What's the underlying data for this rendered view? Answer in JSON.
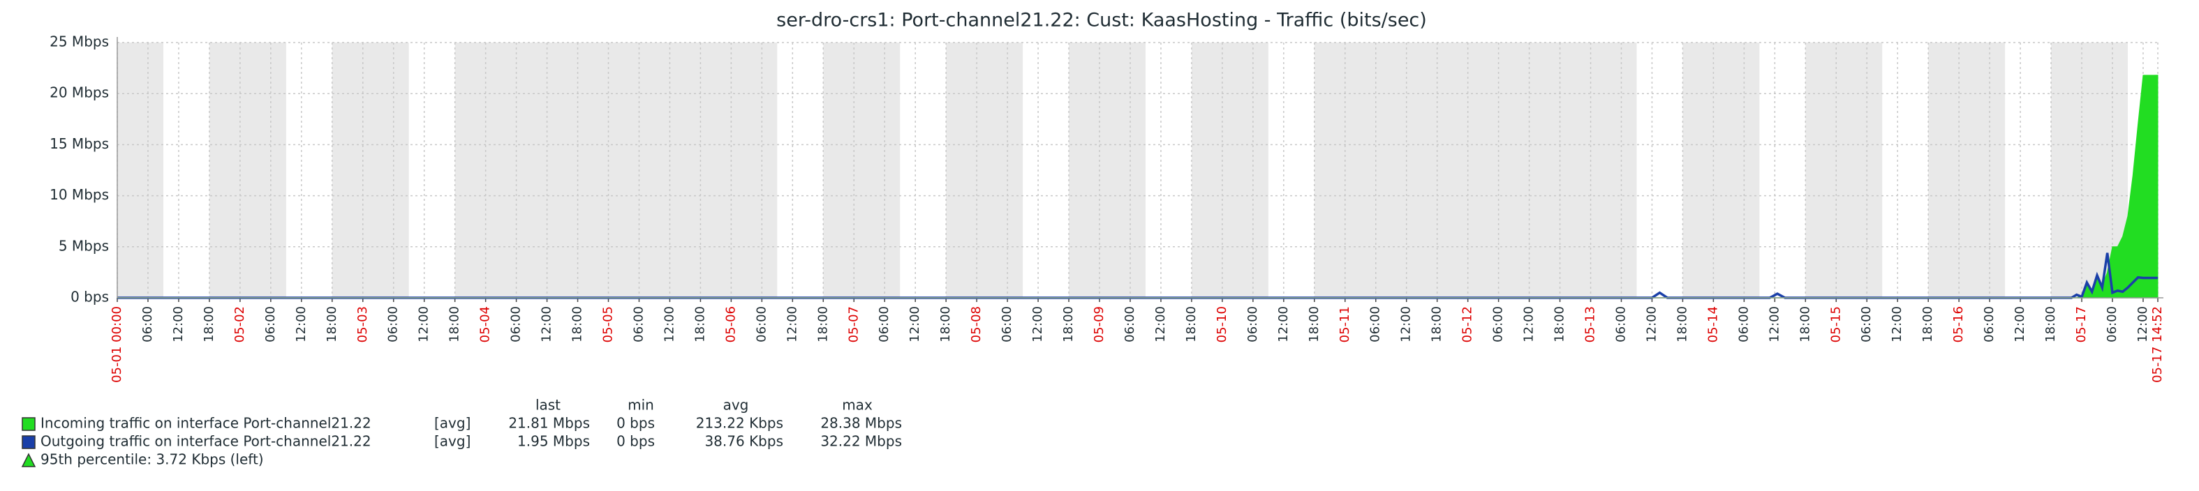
{
  "chart_data": {
    "type": "area",
    "title": "ser-dro-crs1: Port-channel21.22: Cust: KaasHosting - Traffic (bits/sec)",
    "x": [
      0,
      300,
      301.5,
      303,
      323,
      324.5,
      326,
      380,
      382,
      383,
      384,
      385,
      386,
      387,
      388,
      389,
      390,
      391,
      392,
      393,
      394,
      395,
      396,
      397,
      398,
      398.87
    ],
    "xlim": [
      0,
      398.87
    ],
    "xticks": [
      {
        "value": 0,
        "label": "05-01 00:00"
      },
      {
        "value": 6,
        "label": "06:00"
      },
      {
        "value": 12,
        "label": "12:00"
      },
      {
        "value": 18,
        "label": "18:00"
      },
      {
        "value": 24,
        "label": "05-02"
      },
      {
        "value": 30,
        "label": "06:00"
      },
      {
        "value": 36,
        "label": "12:00"
      },
      {
        "value": 42,
        "label": "18:00"
      },
      {
        "value": 48,
        "label": "05-03"
      },
      {
        "value": 54,
        "label": "06:00"
      },
      {
        "value": 60,
        "label": "12:00"
      },
      {
        "value": 66,
        "label": "18:00"
      },
      {
        "value": 72,
        "label": "05-04"
      },
      {
        "value": 78,
        "label": "06:00"
      },
      {
        "value": 84,
        "label": "12:00"
      },
      {
        "value": 90,
        "label": "18:00"
      },
      {
        "value": 96,
        "label": "05-05"
      },
      {
        "value": 102,
        "label": "06:00"
      },
      {
        "value": 108,
        "label": "12:00"
      },
      {
        "value": 114,
        "label": "18:00"
      },
      {
        "value": 120,
        "label": "05-06"
      },
      {
        "value": 126,
        "label": "06:00"
      },
      {
        "value": 132,
        "label": "12:00"
      },
      {
        "value": 138,
        "label": "18:00"
      },
      {
        "value": 144,
        "label": "05-07"
      },
      {
        "value": 150,
        "label": "06:00"
      },
      {
        "value": 156,
        "label": "12:00"
      },
      {
        "value": 162,
        "label": "18:00"
      },
      {
        "value": 168,
        "label": "05-08"
      },
      {
        "value": 174,
        "label": "06:00"
      },
      {
        "value": 180,
        "label": "12:00"
      },
      {
        "value": 186,
        "label": "18:00"
      },
      {
        "value": 192,
        "label": "05-09"
      },
      {
        "value": 198,
        "label": "06:00"
      },
      {
        "value": 204,
        "label": "12:00"
      },
      {
        "value": 210,
        "label": "18:00"
      },
      {
        "value": 216,
        "label": "05-10"
      },
      {
        "value": 222,
        "label": "06:00"
      },
      {
        "value": 228,
        "label": "12:00"
      },
      {
        "value": 234,
        "label": "18:00"
      },
      {
        "value": 240,
        "label": "05-11"
      },
      {
        "value": 246,
        "label": "06:00"
      },
      {
        "value": 252,
        "label": "12:00"
      },
      {
        "value": 258,
        "label": "18:00"
      },
      {
        "value": 264,
        "label": "05-12"
      },
      {
        "value": 270,
        "label": "06:00"
      },
      {
        "value": 276,
        "label": "12:00"
      },
      {
        "value": 282,
        "label": "18:00"
      },
      {
        "value": 288,
        "label": "05-13"
      },
      {
        "value": 294,
        "label": "06:00"
      },
      {
        "value": 300,
        "label": "12:00"
      },
      {
        "value": 306,
        "label": "18:00"
      },
      {
        "value": 312,
        "label": "05-14"
      },
      {
        "value": 318,
        "label": "06:00"
      },
      {
        "value": 324,
        "label": "12:00"
      },
      {
        "value": 330,
        "label": "18:00"
      },
      {
        "value": 336,
        "label": "05-15"
      },
      {
        "value": 342,
        "label": "06:00"
      },
      {
        "value": 348,
        "label": "12:00"
      },
      {
        "value": 354,
        "label": "18:00"
      },
      {
        "value": 360,
        "label": "05-16"
      },
      {
        "value": 366,
        "label": "06:00"
      },
      {
        "value": 372,
        "label": "12:00"
      },
      {
        "value": 378,
        "label": "18:00"
      },
      {
        "value": 384,
        "label": "05-17"
      },
      {
        "value": 390,
        "label": "06:00"
      },
      {
        "value": 396,
        "label": "12:00"
      },
      {
        "value": 398.87,
        "label": "05-17 14:52"
      }
    ],
    "date_label_color": "#dd0000",
    "ylim": [
      0,
      25000000
    ],
    "yticks": [
      {
        "value": 0,
        "label": "0 bps"
      },
      {
        "value": 5000000,
        "label": "5 Mbps"
      },
      {
        "value": 10000000,
        "label": "10 Mbps"
      },
      {
        "value": 15000000,
        "label": "15 Mbps"
      },
      {
        "value": 20000000,
        "label": "20 Mbps"
      },
      {
        "value": 25000000,
        "label": "25 Mbps"
      }
    ],
    "grid": true,
    "shaded_periods": [
      [
        0,
        9
      ],
      [
        18,
        33
      ],
      [
        42,
        57
      ],
      [
        66,
        129
      ],
      [
        138,
        153
      ],
      [
        162,
        177
      ],
      [
        186,
        201
      ],
      [
        210,
        225
      ],
      [
        234,
        297
      ],
      [
        306,
        321
      ],
      [
        330,
        345
      ],
      [
        354,
        369
      ],
      [
        378,
        393
      ]
    ],
    "shade_color": "#e9e9e9",
    "legend_columns": [
      "last",
      "min",
      "avg",
      "max"
    ],
    "series": [
      {
        "name": "Incoming traffic on interface Port-channel21.22",
        "color": "#22dd22",
        "draw": "area",
        "func": "[avg]",
        "stats": [
          "21.81 Mbps",
          "0 bps",
          "213.22 Kbps",
          "28.38 Mbps"
        ],
        "values": [
          0,
          0,
          0,
          0,
          0,
          0,
          0,
          0,
          0,
          0,
          200000,
          1500000,
          800000,
          2000000,
          1200000,
          2500000,
          5000000,
          5000000,
          6000000,
          8000000,
          12000000,
          17000000,
          21800000,
          21800000,
          21800000,
          21810000
        ]
      },
      {
        "name": "Outgoing traffic on interface Port-channel21.22",
        "color": "#1a3fa8",
        "draw": "line",
        "func": "[avg]",
        "stats": [
          "1.95 Mbps",
          "0 bps",
          "38.76 Kbps",
          "32.22 Mbps"
        ],
        "values": [
          0,
          0,
          500000,
          0,
          0,
          400000,
          0,
          0,
          0,
          300000,
          100000,
          1500000,
          600000,
          2200000,
          1000000,
          4400000,
          500000,
          700000,
          600000,
          1000000,
          1500000,
          2000000,
          1950000,
          1950000,
          1950000,
          1950000
        ]
      }
    ],
    "percentile": {
      "value": 3720,
      "label": "95th percentile: 3.72 Kbps (left)",
      "color": "#22dd22"
    }
  }
}
